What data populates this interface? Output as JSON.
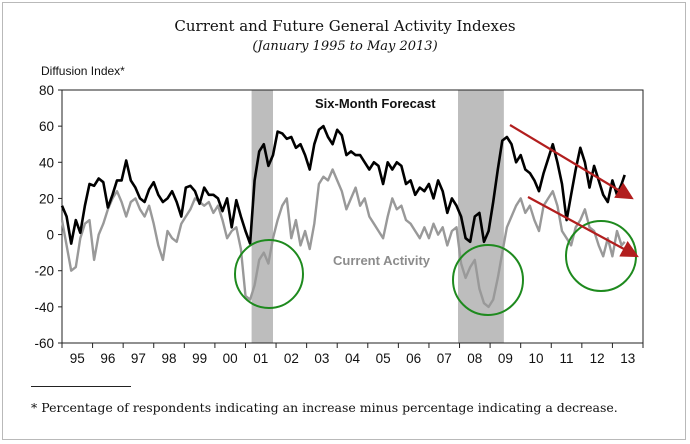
{
  "chart_data": {
    "type": "line",
    "title": "Current and Future General Activity Indexes",
    "subtitle": "(January 1995 to May 2013)",
    "ylabel": "Diffusion Index*",
    "ylim": [
      -60,
      80
    ],
    "yticks": [
      "80",
      "60",
      "40",
      "20",
      "0",
      "-20",
      "-40",
      "-60"
    ],
    "categories": [
      "95",
      "96",
      "97",
      "98",
      "99",
      "00",
      "01",
      "02",
      "03",
      "04",
      "05",
      "06",
      "07",
      "08",
      "09",
      "10",
      "11",
      "12",
      "13"
    ],
    "annotations": {
      "forecast_label": "Six-Month Forecast",
      "current_label": "Current Activity"
    },
    "footnote": "* Percentage of respondents indicating an increase minus percentage indicating a decrease.",
    "recessions": [
      [
        2001.2,
        2001.9
      ],
      [
        2007.95,
        2009.45
      ]
    ],
    "series": [
      {
        "name": "Six-Month Forecast",
        "color": "#000000",
        "points": [
          [
            1995.0,
            16
          ],
          [
            1995.15,
            10
          ],
          [
            1995.3,
            -5
          ],
          [
            1995.45,
            8
          ],
          [
            1995.6,
            1
          ],
          [
            1995.75,
            16
          ],
          [
            1995.9,
            28
          ],
          [
            1996.05,
            27
          ],
          [
            1996.2,
            31
          ],
          [
            1996.35,
            29
          ],
          [
            1996.5,
            15
          ],
          [
            1996.65,
            22
          ],
          [
            1996.8,
            30
          ],
          [
            1996.95,
            30
          ],
          [
            1997.1,
            41
          ],
          [
            1997.25,
            30
          ],
          [
            1997.4,
            26
          ],
          [
            1997.55,
            20
          ],
          [
            1997.7,
            18
          ],
          [
            1997.85,
            25
          ],
          [
            1998.0,
            29
          ],
          [
            1998.15,
            22
          ],
          [
            1998.3,
            18
          ],
          [
            1998.45,
            20
          ],
          [
            1998.6,
            24
          ],
          [
            1998.75,
            18
          ],
          [
            1998.9,
            10
          ],
          [
            1999.05,
            26
          ],
          [
            1999.2,
            27
          ],
          [
            1999.35,
            24
          ],
          [
            1999.5,
            17
          ],
          [
            1999.65,
            26
          ],
          [
            1999.8,
            22
          ],
          [
            1999.95,
            22
          ],
          [
            2000.1,
            20
          ],
          [
            2000.25,
            13
          ],
          [
            2000.4,
            20
          ],
          [
            2000.55,
            4
          ],
          [
            2000.7,
            19
          ],
          [
            2000.85,
            10
          ],
          [
            2001.0,
            2
          ],
          [
            2001.15,
            -5
          ],
          [
            2001.3,
            30
          ],
          [
            2001.45,
            46
          ],
          [
            2001.6,
            50
          ],
          [
            2001.75,
            38
          ],
          [
            2001.9,
            44
          ],
          [
            2002.05,
            57
          ],
          [
            2002.2,
            56
          ],
          [
            2002.35,
            53
          ],
          [
            2002.5,
            54
          ],
          [
            2002.65,
            48
          ],
          [
            2002.8,
            50
          ],
          [
            2002.95,
            44
          ],
          [
            2003.1,
            36
          ],
          [
            2003.25,
            50
          ],
          [
            2003.4,
            58
          ],
          [
            2003.55,
            60
          ],
          [
            2003.7,
            54
          ],
          [
            2003.85,
            50
          ],
          [
            2004.0,
            58
          ],
          [
            2004.15,
            55
          ],
          [
            2004.3,
            44
          ],
          [
            2004.45,
            46
          ],
          [
            2004.6,
            44
          ],
          [
            2004.75,
            44
          ],
          [
            2004.9,
            40
          ],
          [
            2005.05,
            36
          ],
          [
            2005.2,
            40
          ],
          [
            2005.35,
            38
          ],
          [
            2005.5,
            28
          ],
          [
            2005.65,
            40
          ],
          [
            2005.8,
            36
          ],
          [
            2005.95,
            40
          ],
          [
            2006.1,
            38
          ],
          [
            2006.25,
            28
          ],
          [
            2006.4,
            30
          ],
          [
            2006.55,
            22
          ],
          [
            2006.7,
            26
          ],
          [
            2006.85,
            24
          ],
          [
            2007.0,
            28
          ],
          [
            2007.15,
            20
          ],
          [
            2007.3,
            30
          ],
          [
            2007.45,
            24
          ],
          [
            2007.6,
            12
          ],
          [
            2007.75,
            20
          ],
          [
            2007.9,
            16
          ],
          [
            2008.05,
            10
          ],
          [
            2008.2,
            -2
          ],
          [
            2008.35,
            -4
          ],
          [
            2008.5,
            10
          ],
          [
            2008.65,
            12
          ],
          [
            2008.8,
            -4
          ],
          [
            2008.95,
            2
          ],
          [
            2009.1,
            18
          ],
          [
            2009.25,
            36
          ],
          [
            2009.4,
            52
          ],
          [
            2009.55,
            54
          ],
          [
            2009.7,
            50
          ],
          [
            2009.85,
            40
          ],
          [
            2010.0,
            44
          ],
          [
            2010.15,
            36
          ],
          [
            2010.3,
            34
          ],
          [
            2010.45,
            30
          ],
          [
            2010.6,
            24
          ],
          [
            2010.75,
            34
          ],
          [
            2010.9,
            42
          ],
          [
            2011.05,
            50
          ],
          [
            2011.2,
            40
          ],
          [
            2011.35,
            28
          ],
          [
            2011.5,
            8
          ],
          [
            2011.65,
            22
          ],
          [
            2011.8,
            36
          ],
          [
            2011.95,
            48
          ],
          [
            2012.1,
            40
          ],
          [
            2012.25,
            26
          ],
          [
            2012.4,
            38
          ],
          [
            2012.55,
            30
          ],
          [
            2012.7,
            22
          ],
          [
            2012.85,
            18
          ],
          [
            2013.0,
            30
          ],
          [
            2013.15,
            22
          ],
          [
            2013.3,
            28
          ],
          [
            2013.4,
            33
          ]
        ]
      },
      {
        "name": "Current Activity",
        "color": "#999999",
        "points": [
          [
            1995.0,
            8
          ],
          [
            1995.15,
            -6
          ],
          [
            1995.3,
            -20
          ],
          [
            1995.45,
            -18
          ],
          [
            1995.6,
            -2
          ],
          [
            1995.75,
            6
          ],
          [
            1995.9,
            8
          ],
          [
            1996.05,
            -14
          ],
          [
            1996.2,
            0
          ],
          [
            1996.35,
            6
          ],
          [
            1996.5,
            14
          ],
          [
            1996.65,
            20
          ],
          [
            1996.8,
            24
          ],
          [
            1996.95,
            18
          ],
          [
            1997.1,
            10
          ],
          [
            1997.25,
            18
          ],
          [
            1997.4,
            20
          ],
          [
            1997.55,
            14
          ],
          [
            1997.7,
            10
          ],
          [
            1997.85,
            16
          ],
          [
            1998.0,
            6
          ],
          [
            1998.15,
            -6
          ],
          [
            1998.3,
            -14
          ],
          [
            1998.45,
            2
          ],
          [
            1998.6,
            -2
          ],
          [
            1998.75,
            -4
          ],
          [
            1998.9,
            6
          ],
          [
            1999.05,
            10
          ],
          [
            1999.2,
            14
          ],
          [
            1999.35,
            20
          ],
          [
            1999.5,
            18
          ],
          [
            1999.65,
            16
          ],
          [
            1999.8,
            18
          ],
          [
            1999.95,
            12
          ],
          [
            2000.1,
            16
          ],
          [
            2000.25,
            8
          ],
          [
            2000.4,
            -2
          ],
          [
            2000.55,
            2
          ],
          [
            2000.7,
            4
          ],
          [
            2000.85,
            -8
          ],
          [
            2001.0,
            -34
          ],
          [
            2001.15,
            -36
          ],
          [
            2001.3,
            -28
          ],
          [
            2001.45,
            -14
          ],
          [
            2001.6,
            -10
          ],
          [
            2001.75,
            -16
          ],
          [
            2001.9,
            -2
          ],
          [
            2002.05,
            8
          ],
          [
            2002.2,
            16
          ],
          [
            2002.35,
            20
          ],
          [
            2002.5,
            -2
          ],
          [
            2002.65,
            8
          ],
          [
            2002.8,
            -6
          ],
          [
            2002.95,
            2
          ],
          [
            2003.1,
            -8
          ],
          [
            2003.25,
            6
          ],
          [
            2003.4,
            28
          ],
          [
            2003.55,
            32
          ],
          [
            2003.7,
            30
          ],
          [
            2003.85,
            36
          ],
          [
            2004.0,
            30
          ],
          [
            2004.15,
            24
          ],
          [
            2004.3,
            14
          ],
          [
            2004.45,
            20
          ],
          [
            2004.6,
            26
          ],
          [
            2004.75,
            16
          ],
          [
            2004.9,
            20
          ],
          [
            2005.05,
            10
          ],
          [
            2005.2,
            6
          ],
          [
            2005.35,
            2
          ],
          [
            2005.5,
            -2
          ],
          [
            2005.65,
            10
          ],
          [
            2005.8,
            20
          ],
          [
            2005.95,
            14
          ],
          [
            2006.1,
            16
          ],
          [
            2006.25,
            8
          ],
          [
            2006.4,
            6
          ],
          [
            2006.55,
            2
          ],
          [
            2006.7,
            -2
          ],
          [
            2006.85,
            4
          ],
          [
            2007.0,
            -2
          ],
          [
            2007.15,
            6
          ],
          [
            2007.3,
            0
          ],
          [
            2007.45,
            4
          ],
          [
            2007.6,
            -6
          ],
          [
            2007.75,
            2
          ],
          [
            2007.9,
            4
          ],
          [
            2008.05,
            -16
          ],
          [
            2008.2,
            -24
          ],
          [
            2008.35,
            -18
          ],
          [
            2008.5,
            -14
          ],
          [
            2008.65,
            -30
          ],
          [
            2008.8,
            -38
          ],
          [
            2008.95,
            -40
          ],
          [
            2009.1,
            -36
          ],
          [
            2009.25,
            -24
          ],
          [
            2009.4,
            -10
          ],
          [
            2009.55,
            4
          ],
          [
            2009.7,
            10
          ],
          [
            2009.85,
            16
          ],
          [
            2010.0,
            20
          ],
          [
            2010.15,
            12
          ],
          [
            2010.3,
            16
          ],
          [
            2010.45,
            8
          ],
          [
            2010.6,
            2
          ],
          [
            2010.75,
            16
          ],
          [
            2010.9,
            20
          ],
          [
            2011.05,
            24
          ],
          [
            2011.2,
            16
          ],
          [
            2011.35,
            2
          ],
          [
            2011.5,
            -2
          ],
          [
            2011.65,
            -6
          ],
          [
            2011.8,
            4
          ],
          [
            2011.95,
            8
          ],
          [
            2012.1,
            14
          ],
          [
            2012.25,
            4
          ],
          [
            2012.4,
            2
          ],
          [
            2012.55,
            -6
          ],
          [
            2012.7,
            -12
          ],
          [
            2012.85,
            -2
          ],
          [
            2013.0,
            -12
          ],
          [
            2013.15,
            2
          ],
          [
            2013.3,
            -6
          ],
          [
            2013.4,
            -4
          ]
        ]
      }
    ],
    "arrow_color": "#b21e1e",
    "circle_color": "#1e8a1e"
  }
}
